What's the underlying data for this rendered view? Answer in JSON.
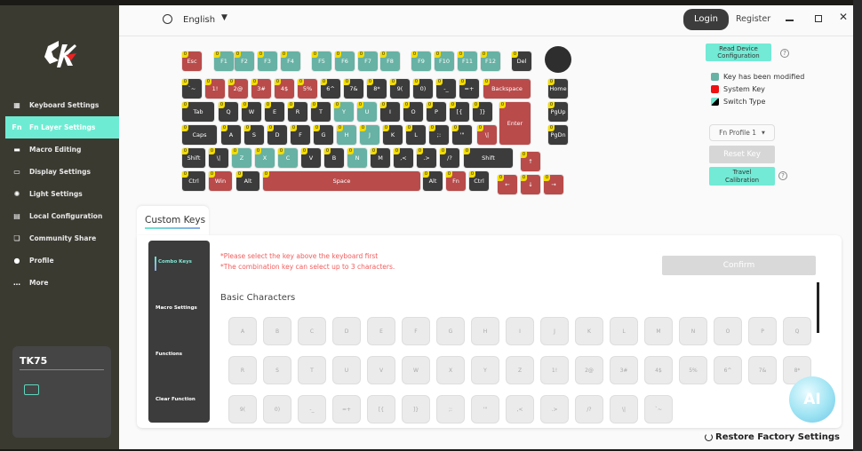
{
  "sidebar": {
    "logo": "CK",
    "items": [
      {
        "label": "Keyboard Settings",
        "icon": "keyboard-icon"
      },
      {
        "label": "Fn Layer Settings",
        "icon": "fn-icon",
        "active": true
      },
      {
        "label": "Macro Editing",
        "icon": "laptop-icon"
      },
      {
        "label": "Display Settings",
        "icon": "monitor-icon"
      },
      {
        "label": "Light Settings",
        "icon": "light-icon"
      },
      {
        "label": "Local Configuration",
        "icon": "archive-icon"
      },
      {
        "label": "Community Share",
        "icon": "chat-icon"
      },
      {
        "label": "Profile",
        "icon": "user-icon"
      },
      {
        "label": "More",
        "icon": "more-icon"
      }
    ],
    "device": {
      "name": "TK75",
      "icon": "keyboard-icon"
    }
  },
  "header": {
    "language": "English",
    "login": "Login",
    "register": "Register",
    "fn_label": "Fn"
  },
  "colors": {
    "modified": "#67b2a4",
    "system": "#b94b4b",
    "default": "#3c3c3c",
    "accent": "#72ead5",
    "badge": "#f3dc00"
  },
  "keyboard": {
    "badge": "0",
    "rows": [
      [
        [
          "Esc",
          "system"
        ],
        [
          "F1",
          "modified"
        ],
        [
          "F2",
          "modified"
        ],
        [
          "F3",
          "modified"
        ],
        [
          "F4",
          "modified"
        ],
        [
          "F5",
          "modified"
        ],
        [
          "F6",
          "modified"
        ],
        [
          "F7",
          "modified"
        ],
        [
          "F8",
          "modified"
        ],
        [
          "F9",
          "modified"
        ],
        [
          "F10",
          "modified"
        ],
        [
          "F11",
          "modified"
        ],
        [
          "F12",
          "modified"
        ],
        [
          "Del",
          "default"
        ]
      ],
      [
        [
          "`~",
          "default"
        ],
        [
          "1!",
          "system"
        ],
        [
          "2@",
          "system"
        ],
        [
          "3#",
          "system"
        ],
        [
          "4$",
          "system"
        ],
        [
          "5%",
          "system"
        ],
        [
          "6^",
          "default"
        ],
        [
          "7&",
          "default"
        ],
        [
          "8*",
          "default"
        ],
        [
          "9(",
          "default"
        ],
        [
          "0)",
          "default"
        ],
        [
          "-_",
          "default"
        ],
        [
          "=+",
          "default"
        ],
        [
          "Backspace",
          "system"
        ],
        [
          "Home",
          "default"
        ]
      ],
      [
        [
          "Tab",
          "default"
        ],
        [
          "Q",
          "default"
        ],
        [
          "W",
          "default"
        ],
        [
          "E",
          "default"
        ],
        [
          "R",
          "default"
        ],
        [
          "T",
          "default"
        ],
        [
          "Y",
          "modified"
        ],
        [
          "U",
          "modified"
        ],
        [
          "I",
          "default"
        ],
        [
          "O",
          "default"
        ],
        [
          "P",
          "default"
        ],
        [
          "[{",
          "default"
        ],
        [
          "]}",
          "default"
        ],
        [
          "Enter",
          "system"
        ],
        [
          "PgUp",
          "default"
        ]
      ],
      [
        [
          "Caps",
          "default"
        ],
        [
          "A",
          "default"
        ],
        [
          "S",
          "default"
        ],
        [
          "D",
          "default"
        ],
        [
          "F",
          "default"
        ],
        [
          "G",
          "default"
        ],
        [
          "H",
          "modified"
        ],
        [
          "J",
          "modified"
        ],
        [
          "K",
          "default"
        ],
        [
          "L",
          "default"
        ],
        [
          ";:",
          "default"
        ],
        [
          "'\"",
          "default"
        ],
        [
          "\\|",
          "system"
        ],
        [
          "PgDn",
          "default"
        ]
      ],
      [
        [
          "Shift",
          "default"
        ],
        [
          "\\|",
          "default"
        ],
        [
          "Z",
          "modified"
        ],
        [
          "X",
          "modified"
        ],
        [
          "C",
          "modified"
        ],
        [
          "V",
          "default"
        ],
        [
          "B",
          "default"
        ],
        [
          "N",
          "modified"
        ],
        [
          "M",
          "default"
        ],
        [
          ",<",
          "default"
        ],
        [
          ".>",
          "default"
        ],
        [
          "/?",
          "default"
        ],
        [
          "Shift",
          "default"
        ],
        [
          "↑",
          "system"
        ]
      ],
      [
        [
          "Ctrl",
          "default"
        ],
        [
          "Win",
          "system"
        ],
        [
          "Alt",
          "default"
        ],
        [
          "Space",
          "system"
        ],
        [
          "Alt",
          "default"
        ],
        [
          "Fn",
          "system"
        ],
        [
          "Ctrl",
          "default"
        ],
        [
          "←",
          "system"
        ],
        [
          "↓",
          "system"
        ],
        [
          "→",
          "system"
        ]
      ]
    ]
  },
  "right_panel": {
    "read_config": "Read Device Configuration",
    "legend": [
      {
        "label": "Key has been modified",
        "color": "#67b2a4"
      },
      {
        "label": "System Key",
        "color": "#ee1111"
      },
      {
        "label": "Switch Type",
        "color": "#000000"
      }
    ],
    "profile": "Fn Profile 1",
    "reset_key": "Reset Key",
    "travel_calibration": "Travel Calibration"
  },
  "custom": {
    "tab": "Custom Keys",
    "menu": [
      "Combo Keys",
      "Macro Settings",
      "Functions",
      "Clear Function"
    ],
    "hint1": "*Please select the key above the keyboard first",
    "hint2": "*The combination key can select up to 3 characters.",
    "confirm": "Confirm",
    "section": "Basic Characters",
    "chars": [
      "A",
      "B",
      "C",
      "D",
      "E",
      "F",
      "G",
      "H",
      "I",
      "J",
      "K",
      "L",
      "M",
      "N",
      "O",
      "P",
      "Q",
      "R",
      "S",
      "T",
      "U",
      "V",
      "W",
      "X",
      "Y",
      "Z",
      "1!",
      "2@",
      "3#",
      "4$",
      "5%",
      "6^",
      "7&",
      "8*",
      "9(",
      "0)",
      "-_",
      "=+",
      "[{",
      "]}",
      ";:",
      "'\"",
      ",<",
      ".>",
      "/?",
      "\\|",
      "`~"
    ]
  },
  "ai_label": "AI",
  "restore": "Restore Factory Settings"
}
